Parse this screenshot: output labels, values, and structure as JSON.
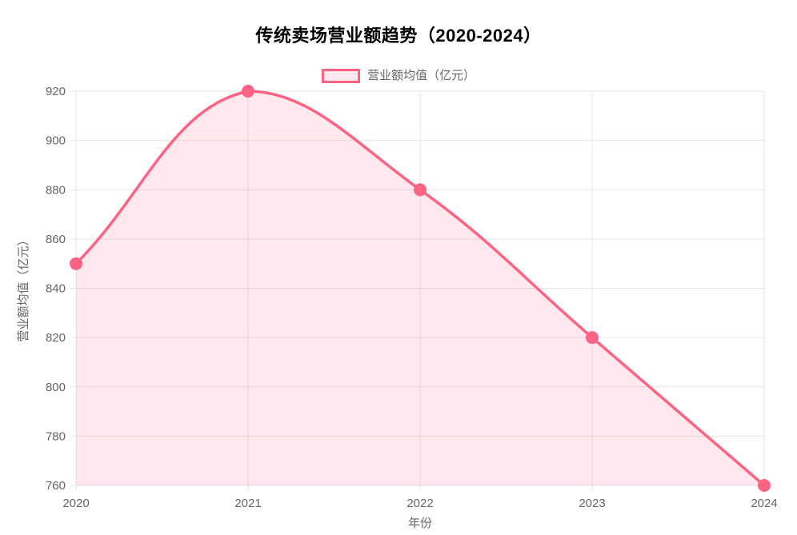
{
  "chart_data": {
    "type": "line",
    "title": "传统卖场营业额趋势（2020-2024）",
    "categories": [
      "2020",
      "2021",
      "2022",
      "2023",
      "2024"
    ],
    "series": [
      {
        "name": "营业额均值（亿元）",
        "values": [
          850,
          920,
          880,
          820,
          760
        ]
      }
    ],
    "xlabel": "年份",
    "ylabel": "营业额均值（亿元）",
    "ylim": [
      760,
      920
    ],
    "ytick_step": 20,
    "yticks": [
      760,
      780,
      800,
      820,
      840,
      860,
      880,
      900,
      920
    ],
    "grid": true,
    "smooth": true,
    "area_fill": true,
    "legend_position": "top",
    "colors": {
      "line": "#FF6384",
      "point": "#FF6384",
      "area": "rgba(255, 99, 132, 0.14)",
      "grid": "#E6E6E6",
      "tick_text": "#666666",
      "title_text": "#000000"
    }
  }
}
